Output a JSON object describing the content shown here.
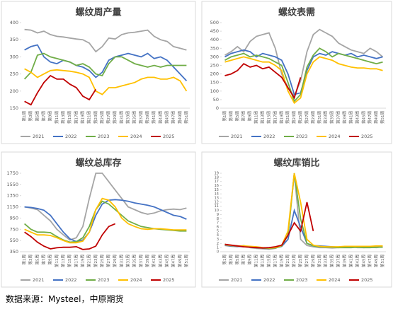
{
  "chart_data": [
    {
      "type": "line",
      "title": "螺纹周产量",
      "categories": [
        "第1周",
        "第3周",
        "第5周",
        "第7周",
        "第9周",
        "第11周",
        "第13周",
        "第15周",
        "第17周",
        "第19周",
        "第21周",
        "第23周",
        "第25周",
        "第27周",
        "第29周",
        "第31周",
        "第33周",
        "第35周",
        "第37周",
        "第39周",
        "第41周",
        "第43周",
        "第45周",
        "第47周",
        "第49周",
        "第51周"
      ],
      "ylim": [
        150,
        400
      ],
      "yticks": [
        150,
        200,
        250,
        300,
        350,
        400
      ],
      "grid": false,
      "series": [
        {
          "name": "2021",
          "color": "#a5a5a5",
          "values": [
            380,
            378,
            370,
            375,
            365,
            360,
            358,
            355,
            352,
            350,
            340,
            315,
            330,
            355,
            352,
            365,
            370,
            372,
            375,
            378,
            360,
            350,
            345,
            330,
            325,
            320
          ]
        },
        {
          "name": "2022",
          "color": "#4472c4",
          "values": [
            320,
            330,
            335,
            300,
            285,
            280,
            290,
            285,
            275,
            270,
            260,
            240,
            255,
            290,
            300,
            305,
            310,
            305,
            300,
            310,
            295,
            300,
            290,
            270,
            250,
            230
          ]
        },
        {
          "name": "2023",
          "color": "#70ad47",
          "values": [
            235,
            255,
            305,
            310,
            300,
            295,
            290,
            285,
            275,
            280,
            270,
            250,
            245,
            280,
            300,
            300,
            290,
            280,
            275,
            270,
            275,
            270,
            275,
            275,
            275,
            275
          ]
        },
        {
          "name": "2024",
          "color": "#ffc000",
          "values": [
            265,
            255,
            240,
            250,
            260,
            262,
            260,
            258,
            255,
            250,
            240,
            200,
            190,
            210,
            210,
            215,
            220,
            225,
            235,
            240,
            240,
            235,
            235,
            240,
            230,
            200
          ]
        },
        {
          "name": "2025",
          "color": "#c00000",
          "values": [
            170,
            160,
            195,
            225,
            245,
            235,
            235,
            220,
            210,
            185,
            175,
            205,
            null,
            null,
            null,
            null,
            null,
            null,
            null,
            null,
            null,
            null,
            null,
            null,
            null,
            null
          ]
        }
      ]
    },
    {
      "type": "line",
      "title": "螺纹表需",
      "categories": [
        "第1周",
        "第3周",
        "第5周",
        "第7周",
        "第9周",
        "第11周",
        "第13周",
        "第15周",
        "第17周",
        "第19周",
        "第21周",
        "第23周",
        "第25周",
        "第27周",
        "第29周",
        "第31周",
        "第33周",
        "第35周",
        "第37周",
        "第39周",
        "第41周",
        "第43周",
        "第45周",
        "第47周",
        "第49周",
        "第51周"
      ],
      "ylim": [
        0,
        500
      ],
      "yticks": [
        0,
        50,
        100,
        150,
        200,
        250,
        300,
        350,
        400,
        450,
        500
      ],
      "grid": false,
      "series": [
        {
          "name": "2021",
          "color": "#a5a5a5",
          "values": [
            310,
            330,
            360,
            330,
            390,
            420,
            430,
            440,
            350,
            200,
            120,
            70,
            160,
            330,
            430,
            460,
            440,
            420,
            380,
            360,
            340,
            330,
            320,
            350,
            330,
            300
          ]
        },
        {
          "name": "2022",
          "color": "#4472c4",
          "values": [
            300,
            320,
            330,
            340,
            330,
            300,
            320,
            310,
            300,
            280,
            200,
            80,
            90,
            220,
            300,
            320,
            310,
            330,
            320,
            310,
            320,
            300,
            310,
            300,
            290,
            300
          ]
        },
        {
          "name": "2023",
          "color": "#70ad47",
          "values": [
            280,
            300,
            310,
            320,
            300,
            310,
            300,
            290,
            270,
            250,
            150,
            40,
            80,
            240,
            310,
            350,
            330,
            300,
            320,
            310,
            300,
            290,
            280,
            270,
            260,
            270
          ]
        },
        {
          "name": "2024",
          "color": "#ffc000",
          "values": [
            270,
            280,
            290,
            300,
            290,
            280,
            270,
            270,
            250,
            220,
            100,
            30,
            60,
            200,
            270,
            300,
            290,
            280,
            260,
            250,
            240,
            235,
            235,
            230,
            230,
            220
          ]
        },
        {
          "name": "2025",
          "color": "#c00000",
          "values": [
            190,
            200,
            220,
            260,
            240,
            250,
            230,
            240,
            210,
            180,
            120,
            60,
            180,
            null,
            null,
            null,
            null,
            null,
            null,
            null,
            null,
            null,
            null,
            null,
            null,
            null
          ]
        }
      ]
    },
    {
      "type": "line",
      "title": "螺纹总库存",
      "categories": [
        "第1周",
        "第3周",
        "第5周",
        "第7周",
        "第9周",
        "第11周",
        "第13周",
        "第15周",
        "第17周",
        "第19周",
        "第21周",
        "第23周",
        "第25周",
        "第27周",
        "第29周",
        "第31周",
        "第33周",
        "第35周",
        "第37周",
        "第39周",
        "第41周",
        "第43周",
        "第45周",
        "第47周",
        "第49周",
        "第51周"
      ],
      "ylim": [
        350,
        1750
      ],
      "yticks": [
        350,
        550,
        750,
        950,
        1150,
        1350,
        1550,
        1750
      ],
      "grid": false,
      "series": [
        {
          "name": "2021",
          "color": "#a5a5a5",
          "values": [
            1150,
            1130,
            1100,
            1000,
            900,
            750,
            650,
            560,
            600,
            800,
            1300,
            1750,
            1750,
            1600,
            1450,
            1300,
            1150,
            1100,
            1050,
            1020,
            1040,
            1080,
            1100,
            1110,
            1100,
            1130
          ]
        },
        {
          "name": "2022",
          "color": "#4472c4",
          "values": [
            1150,
            1140,
            1120,
            1090,
            1000,
            850,
            700,
            580,
            530,
            560,
            700,
            1000,
            1200,
            1270,
            1280,
            1270,
            1250,
            1220,
            1200,
            1180,
            1150,
            1100,
            1050,
            1000,
            980,
            930
          ]
        },
        {
          "name": "2023",
          "color": "#70ad47",
          "values": [
            850,
            750,
            700,
            700,
            690,
            620,
            560,
            520,
            530,
            600,
            800,
            1100,
            1250,
            1200,
            1100,
            1000,
            900,
            850,
            800,
            780,
            760,
            750,
            740,
            730,
            720,
            720
          ]
        },
        {
          "name": "2024",
          "color": "#ffc000",
          "values": [
            750,
            700,
            650,
            650,
            640,
            600,
            550,
            510,
            510,
            540,
            700,
            1100,
            1300,
            1270,
            1150,
            950,
            850,
            800,
            760,
            750,
            760,
            760,
            750,
            740,
            740,
            740
          ]
        },
        {
          "name": "2025",
          "color": "#c00000",
          "values": [
            700,
            620,
            520,
            450,
            400,
            420,
            430,
            430,
            440,
            390,
            400,
            450,
            650,
            800,
            850,
            null,
            null,
            null,
            null,
            null,
            null,
            null,
            null,
            null,
            null,
            null
          ]
        }
      ]
    },
    {
      "type": "line",
      "title": "螺纹库销比",
      "categories": [
        "第1周",
        "第3周",
        "第5周",
        "第7周",
        "第9周",
        "第11周",
        "第13周",
        "第15周",
        "第17周",
        "第19周",
        "第21周",
        "第23周",
        "第25周",
        "第27周",
        "第29周",
        "第31周",
        "第33周",
        "第35周",
        "第37周",
        "第39周",
        "第41周",
        "第43周",
        "第45周",
        "第47周",
        "第49周",
        "第51周"
      ],
      "ylim": [
        0,
        19
      ],
      "yticks": [
        0,
        1,
        2,
        3,
        4,
        5,
        6,
        7,
        8,
        9,
        10,
        11,
        12,
        13,
        14,
        15,
        16,
        17,
        18,
        19
      ],
      "grid": false,
      "series": [
        {
          "name": "2021",
          "color": "#a5a5a5",
          "values": [
            1.5,
            1.3,
            1.2,
            1.5,
            1.0,
            0.8,
            0.7,
            0.6,
            0.8,
            1.5,
            4,
            19,
            3,
            1.5,
            1.2,
            1,
            1,
            0.9,
            1,
            1.1,
            1.2,
            1,
            1,
            1.1,
            1,
            1.2
          ]
        },
        {
          "name": "2022",
          "color": "#4472c4",
          "values": [
            1.6,
            1.4,
            1.3,
            1.2,
            1.1,
            1,
            0.9,
            0.8,
            0.9,
            1.3,
            3,
            10,
            6,
            2,
            1.5,
            1.4,
            1.3,
            1.2,
            1.1,
            1.2,
            1.1,
            1.2,
            1.1,
            1.2,
            1.1,
            1.2
          ]
        },
        {
          "name": "2023",
          "color": "#70ad47",
          "values": [
            1.8,
            1.5,
            1.4,
            1.3,
            1.2,
            1.0,
            0.9,
            0.8,
            0.9,
            1.4,
            4,
            19,
            8,
            2,
            1.4,
            1.2,
            1.1,
            1.1,
            1.0,
            1.0,
            1.0,
            1.1,
            1.0,
            1.0,
            1.1,
            1.1
          ]
        },
        {
          "name": "2024",
          "color": "#ffc000",
          "values": [
            1.7,
            1.5,
            1.4,
            1.4,
            1.3,
            1.2,
            1.0,
            0.9,
            1.0,
            1.5,
            5,
            19,
            12,
            3,
            1.6,
            1.3,
            1.2,
            1.2,
            1.2,
            1.3,
            1.3,
            1.3,
            1.3,
            1.3,
            1.4,
            1.4
          ]
        },
        {
          "name": "2025",
          "color": "#c00000",
          "values": [
            1.8,
            1.6,
            1.4,
            1.2,
            1.1,
            1.0,
            0.9,
            1.0,
            1.2,
            1.6,
            4,
            7,
            5,
            12,
            5,
            null,
            null,
            null,
            null,
            null,
            null,
            null,
            null,
            null,
            null,
            null
          ]
        }
      ]
    }
  ],
  "footer": "数据来源：Mysteel，中原期货"
}
